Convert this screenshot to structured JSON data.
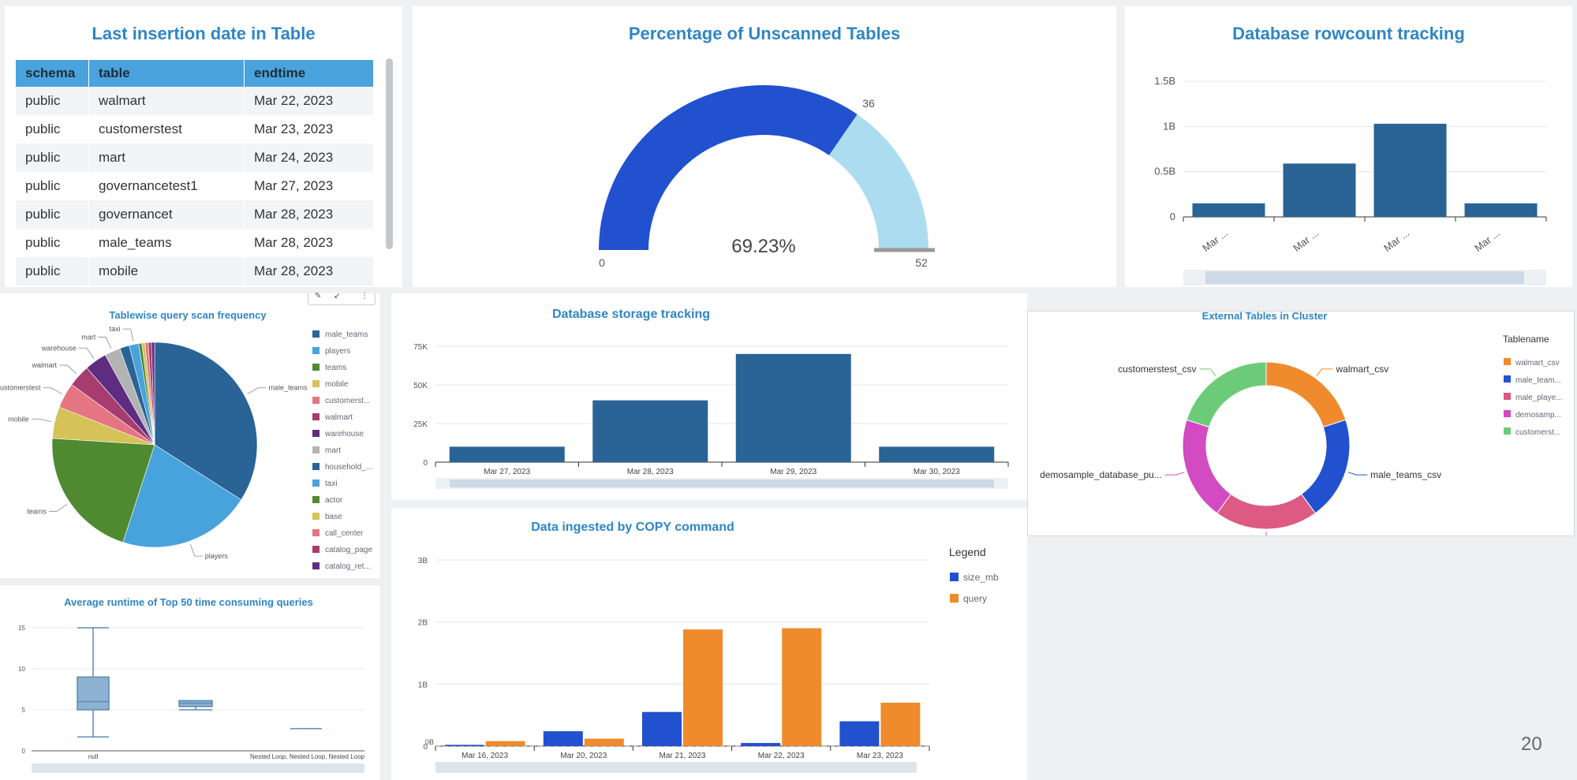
{
  "insertion_table": {
    "title": "Last insertion date in Table",
    "columns": [
      "schema",
      "table",
      "endtime"
    ],
    "rows": [
      [
        "public",
        "walmart",
        "Mar 22, 2023"
      ],
      [
        "public",
        "customerstest",
        "Mar 23, 2023"
      ],
      [
        "public",
        "mart",
        "Mar 24, 2023"
      ],
      [
        "public",
        "governancetest1",
        "Mar 27, 2023"
      ],
      [
        "public",
        "governancet",
        "Mar 28, 2023"
      ],
      [
        "public",
        "male_teams",
        "Mar 28, 2023"
      ],
      [
        "public",
        "mobile",
        "Mar 28, 2023"
      ]
    ]
  },
  "gauge": {
    "title": "Percentage of Unscanned Tables",
    "value": 36,
    "max": 52,
    "min_label": "0",
    "max_label": "52",
    "value_label": "36",
    "percent_label": "69.23%",
    "colors": {
      "filled": "#2251cf",
      "rest": "#acdcef"
    }
  },
  "rowcount_chart": {
    "title": "Database rowcount tracking",
    "chart_data": {
      "type": "bar",
      "categories": [
        "Mar ...",
        "Mar ...",
        "Mar ...",
        "Mar ..."
      ],
      "values": [
        0.15,
        0.59,
        1.03,
        0.15
      ],
      "yticks": [
        "0",
        "0.5B",
        "1B",
        "1.5B"
      ],
      "ylim": [
        0,
        1.5
      ],
      "color": "#2a6496"
    }
  },
  "pie_chart": {
    "title": "Tablewise query scan frequency",
    "chart_data": {
      "type": "pie",
      "slices": [
        {
          "label": "male_teams",
          "value": 34,
          "color": "#2a6496"
        },
        {
          "label": "players",
          "value": 21,
          "color": "#48a2dc"
        },
        {
          "label": "teams",
          "value": 21,
          "color": "#4f8a30"
        },
        {
          "label": "mobile",
          "value": 5,
          "color": "#d5c259"
        },
        {
          "label": "customerstest",
          "value": 4,
          "color": "#e57583"
        },
        {
          "label": "walmart",
          "value": 3.5,
          "color": "#a63d6e"
        },
        {
          "label": "warehouse",
          "value": 3.5,
          "color": "#5e2d82"
        },
        {
          "label": "mart",
          "value": 2.5,
          "color": "#b3b3b3"
        },
        {
          "label": "household_...",
          "value": 1.5,
          "color": "#2a6496"
        },
        {
          "label": "taxi",
          "value": 1.5,
          "color": "#48a2dc"
        },
        {
          "label": "actor",
          "value": 0.5,
          "color": "#4f8a30"
        },
        {
          "label": "base",
          "value": 0.5,
          "color": "#d5c259"
        },
        {
          "label": "call_center",
          "value": 0.5,
          "color": "#e57583"
        },
        {
          "label": "catalog_page",
          "value": 0.5,
          "color": "#a63d6e"
        },
        {
          "label": "catalog_ret...",
          "value": 0.5,
          "color": "#5e2d82"
        }
      ],
      "legend": [
        "male_teams",
        "players",
        "teams",
        "mobile",
        "customerst...",
        "walmart",
        "warehouse",
        "mart",
        "household_...",
        "taxi",
        "actor",
        "base",
        "call_center",
        "catalog_page",
        "catalog_ret..."
      ],
      "outer_labels": [
        "male_teams",
        "players",
        "teams",
        "mobile",
        "customerstest",
        "walmart",
        "warehouse",
        "mart",
        "taxi"
      ]
    }
  },
  "storage_chart": {
    "title": "Database storage tracking",
    "chart_data": {
      "type": "bar",
      "categories": [
        "Mar 27, 2023",
        "Mar 28, 2023",
        "Mar 29, 2023",
        "Mar 30, 2023"
      ],
      "values": [
        10000,
        40000,
        70000,
        10000
      ],
      "yticks": [
        "0",
        "25K",
        "50K",
        "75K"
      ],
      "ylim": [
        0,
        75000
      ],
      "color": "#2a6496"
    }
  },
  "external_chart": {
    "title": "External Tables in Cluster",
    "legend_title": "Tablename",
    "chart_data": {
      "type": "pie",
      "donut": true,
      "slices": [
        {
          "label": "walmart_csv",
          "value": 20,
          "color": "#ef8b2c"
        },
        {
          "label": "male_teams_csv",
          "value": 20,
          "color": "#2251cf"
        },
        {
          "label": "male_players_csv",
          "value": 20,
          "color": "#dc5a84"
        },
        {
          "label": "demosample_database_pu...",
          "value": 20,
          "color": "#d24bc3"
        },
        {
          "label": "customerstest_csv",
          "value": 20,
          "color": "#6ccb79"
        }
      ],
      "legend": [
        "walmart_csv",
        "male_team...",
        "male_playe...",
        "demosamp...",
        "customerst..."
      ]
    }
  },
  "runtime_chart": {
    "title": "Average runtime of Top 50 time consuming queries",
    "chart_data": {
      "type": "box",
      "categories": [
        "null",
        "",
        "Nested Loop, Nested Loop, Nested Loop"
      ],
      "boxes": [
        {
          "min": 1.7,
          "q1": 5,
          "median": 6,
          "q3": 9,
          "max": 15
        },
        {
          "min": 5,
          "q1": 5.4,
          "median": 5.8,
          "q3": 6.1,
          "max": 6.1
        },
        {
          "min": 2.7,
          "q1": 2.7,
          "median": 2.7,
          "q3": 2.7,
          "max": 2.7
        }
      ],
      "yticks": [
        "0",
        "5",
        "10",
        "15"
      ],
      "ylim": [
        0,
        15
      ],
      "color": "#5a8bb6"
    }
  },
  "copy_chart": {
    "title": "Data ingested by COPY command",
    "legend_title": "Legend",
    "chart_data": {
      "type": "bar",
      "categories": [
        "Mar 16, 2023",
        "Mar 20, 2023",
        "Mar 21, 2023",
        "Mar 22, 2023",
        "Mar 23, 2023"
      ],
      "series": [
        {
          "name": "size_mb",
          "values": [
            0.02,
            0.24,
            0.55,
            0.05,
            0.4
          ],
          "color": "#2251cf"
        },
        {
          "name": "query",
          "values": [
            0.08,
            0.12,
            1.88,
            1.9,
            0.7
          ],
          "color": "#ef8b2c"
        }
      ],
      "yticks": [
        "0",
        "1B",
        "2B",
        "3B"
      ],
      "ylim": [
        0,
        3
      ],
      "zero_label": "0B"
    }
  },
  "page_number": "20"
}
